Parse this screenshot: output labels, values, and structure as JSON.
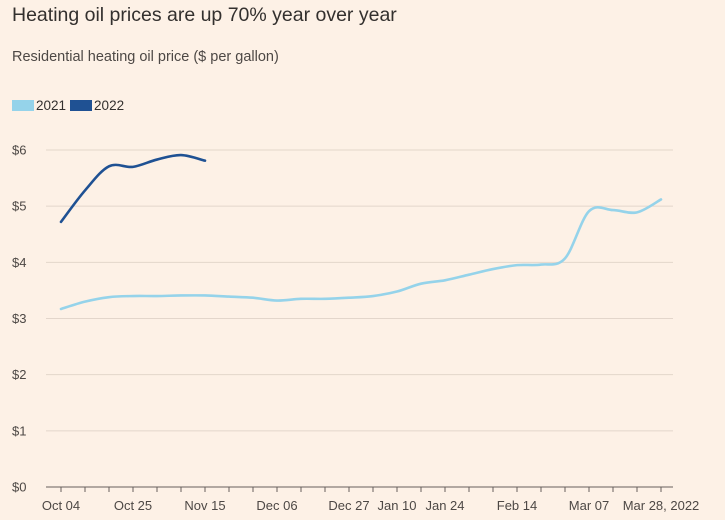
{
  "chart_data": {
    "type": "line",
    "title": "Heating oil prices are up 70% year over year",
    "subtitle": "Residential heating oil price ($ per gallon)",
    "xlabel": "",
    "ylabel": "",
    "ylim": [
      0,
      6
    ],
    "y_ticks": [
      "$0",
      "$1",
      "$2",
      "$3",
      "$4",
      "$5",
      "$6"
    ],
    "y_tick_values": [
      0,
      1,
      2,
      3,
      4,
      5,
      6
    ],
    "x_ticks": [
      "Oct 04",
      "Oct 25",
      "Nov 15",
      "Dec 06",
      "Dec 27",
      "Jan 10",
      "Jan 24",
      "Feb 14",
      "Mar 07",
      "Mar 28, 2022"
    ],
    "x_tick_weeks": [
      0,
      3,
      6,
      9,
      12,
      14,
      16,
      19,
      22,
      25
    ],
    "x_range_weeks": [
      0,
      25
    ],
    "x_minor_tick_weeks": [
      0,
      1,
      2,
      3,
      4,
      5,
      6,
      7,
      8,
      9,
      10,
      11,
      12,
      13,
      14,
      15,
      16,
      17,
      18,
      19,
      20,
      21,
      22,
      23,
      24,
      25
    ],
    "series": [
      {
        "name": "2021",
        "color": "#95d3ea",
        "x_weeks": [
          0,
          1,
          2,
          3,
          4,
          5,
          6,
          7,
          8,
          9,
          10,
          11,
          12,
          13,
          14,
          15,
          16,
          17,
          18,
          19,
          20,
          21,
          22,
          23,
          24,
          25
        ],
        "values": [
          3.17,
          3.3,
          3.38,
          3.4,
          3.4,
          3.41,
          3.41,
          3.39,
          3.37,
          3.32,
          3.35,
          3.35,
          3.37,
          3.4,
          3.48,
          3.62,
          3.68,
          3.78,
          3.88,
          3.95,
          3.96,
          4.07,
          4.91,
          4.93,
          4.89,
          5.12
        ]
      },
      {
        "name": "2022",
        "color": "#1f5193",
        "x_weeks": [
          0,
          1,
          2,
          3,
          4,
          5,
          6
        ],
        "values": [
          4.72,
          5.28,
          5.71,
          5.7,
          5.83,
          5.91,
          5.81
        ]
      }
    ]
  }
}
